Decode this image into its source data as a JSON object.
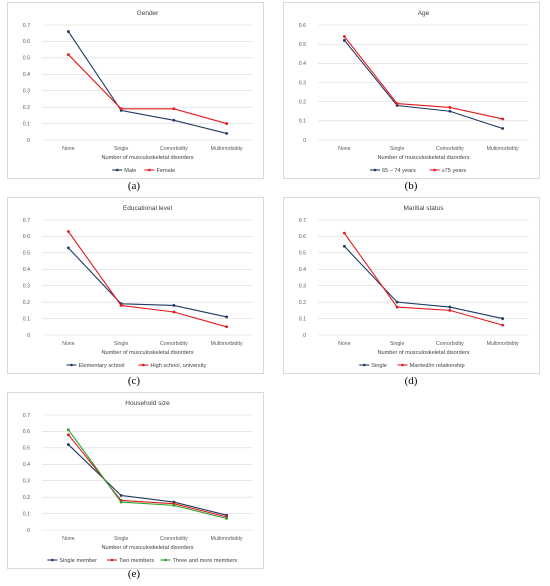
{
  "chart_data": [
    {
      "type": "line",
      "title": "Gender",
      "xlabel": "Number of musculoskeletal disorders",
      "ylabel": "",
      "categories": [
        "None",
        "Single",
        "Comorbidity",
        "Multimorbidity"
      ],
      "yticks": [
        "0",
        "0.1",
        "0.2",
        "0.3",
        "0.4",
        "0.5",
        "0.6",
        "0.7"
      ],
      "ylim": [
        0,
        0.7
      ],
      "grid": true,
      "legend": "bottom",
      "caption": "(a)",
      "series": [
        {
          "name": "Male",
          "color": "#1f3864",
          "values": [
            0.66,
            0.18,
            0.12,
            0.04
          ]
        },
        {
          "name": "Female",
          "color": "#e31a1c",
          "values": [
            0.52,
            0.19,
            0.19,
            0.1
          ]
        }
      ]
    },
    {
      "type": "line",
      "title": "Age",
      "xlabel": "Number of musculoskeletal disorders",
      "ylabel": "",
      "categories": [
        "None",
        "Single",
        "Comorbidity",
        "Multimorbidity"
      ],
      "yticks": [
        "0",
        "0.1",
        "0.2",
        "0.3",
        "0.4",
        "0.5",
        "0.6"
      ],
      "ylim": [
        0,
        0.6
      ],
      "grid": true,
      "legend": "bottom",
      "caption": "(b)",
      "series": [
        {
          "name": "65 – 74 years",
          "color": "#1f3864",
          "values": [
            0.52,
            0.18,
            0.15,
            0.06
          ]
        },
        {
          "name": "≥75 years",
          "color": "#e31a1c",
          "values": [
            0.54,
            0.19,
            0.17,
            0.11
          ]
        }
      ]
    },
    {
      "type": "line",
      "title": "Educational level",
      "xlabel": "Number of musculoskeletal disorders",
      "ylabel": "",
      "categories": [
        "None",
        "Single",
        "Comorbidity",
        "Multimorbidity"
      ],
      "yticks": [
        "0",
        "0.1",
        "0.2",
        "0.3",
        "0.4",
        "0.5",
        "0.6",
        "0.7"
      ],
      "ylim": [
        0,
        0.7
      ],
      "grid": true,
      "legend": "bottom",
      "caption": "(c)",
      "series": [
        {
          "name": "Elementary school",
          "color": "#1f3864",
          "values": [
            0.53,
            0.19,
            0.18,
            0.11
          ]
        },
        {
          "name": "High school, university",
          "color": "#e31a1c",
          "values": [
            0.63,
            0.18,
            0.14,
            0.05
          ]
        }
      ]
    },
    {
      "type": "line",
      "title": "Maritial status",
      "xlabel": "Number of musculoskeletal disorders",
      "ylabel": "",
      "categories": [
        "None",
        "Single",
        "Comorbidity",
        "Multimorbidity"
      ],
      "yticks": [
        "0",
        "0.1",
        "0.2",
        "0.3",
        "0.4",
        "0.5",
        "0.6",
        "0.7"
      ],
      "ylim": [
        0,
        0.7
      ],
      "grid": true,
      "legend": "bottom",
      "caption": "(d)",
      "series": [
        {
          "name": "Single",
          "color": "#1f3864",
          "values": [
            0.54,
            0.2,
            0.17,
            0.1
          ]
        },
        {
          "name": "Married/in relationship",
          "color": "#e31a1c",
          "values": [
            0.62,
            0.17,
            0.15,
            0.06
          ]
        }
      ]
    },
    {
      "type": "line",
      "title": "Household size",
      "xlabel": "Number of musculoskeletal disorders",
      "ylabel": "",
      "categories": [
        "None",
        "Single",
        "Comorbidity",
        "Multimorbidity"
      ],
      "yticks": [
        "0",
        "0.1",
        "0.2",
        "0.3",
        "0.4",
        "0.5",
        "0.6",
        "0.7"
      ],
      "ylim": [
        0,
        0.7
      ],
      "grid": true,
      "legend": "bottom",
      "caption": "(e)",
      "series": [
        {
          "name": "Single member",
          "color": "#1f3864",
          "values": [
            0.52,
            0.21,
            0.17,
            0.09
          ]
        },
        {
          "name": "Two members",
          "color": "#e31a1c",
          "values": [
            0.58,
            0.18,
            0.16,
            0.08
          ]
        },
        {
          "name": "Three and more members",
          "color": "#2ca02c",
          "values": [
            0.61,
            0.17,
            0.15,
            0.07
          ]
        }
      ]
    }
  ]
}
